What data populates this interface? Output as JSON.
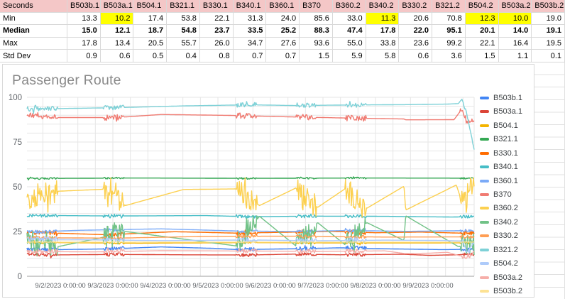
{
  "table": {
    "corner_label": "Seconds",
    "columns": [
      "B503b.1",
      "B503a.1",
      "B504.1",
      "B321.1",
      "B330.1",
      "B340.1",
      "B360.1",
      "B370",
      "B360.2",
      "B340.2",
      "B330.2",
      "B321.2",
      "B504.2",
      "B503a.2",
      "B503b.2"
    ],
    "rows": [
      {
        "label": "Min",
        "bold": false,
        "highlight_cols": [
          1,
          9,
          12,
          13
        ],
        "values": [
          "13.3",
          "10.2",
          "17.4",
          "53.8",
          "22.1",
          "31.3",
          "24.0",
          "85.6",
          "33.0",
          "11.3",
          "20.6",
          "70.8",
          "12.3",
          "10.0",
          "19.0"
        ]
      },
      {
        "label": "Median",
        "bold": true,
        "highlight_cols": [],
        "values": [
          "15.0",
          "12.1",
          "18.7",
          "54.8",
          "23.7",
          "33.5",
          "25.2",
          "88.3",
          "47.4",
          "17.8",
          "22.0",
          "95.1",
          "20.1",
          "14.0",
          "19.1"
        ]
      },
      {
        "label": "Max",
        "bold": false,
        "highlight_cols": [],
        "values": [
          "17.8",
          "13.4",
          "20.5",
          "55.7",
          "26.0",
          "34.7",
          "27.6",
          "93.6",
          "55.0",
          "33.8",
          "23.6",
          "99.2",
          "22.1",
          "16.4",
          "19.5"
        ]
      },
      {
        "label": "Std Dev",
        "bold": false,
        "highlight_cols": [],
        "values": [
          "0.9",
          "0.6",
          "0.5",
          "0.4",
          "0.8",
          "0.7",
          "0.7",
          "1.5",
          "5.9",
          "5.8",
          "0.6",
          "3.6",
          "1.5",
          "1.1",
          "0.1"
        ]
      }
    ],
    "colors": {
      "header_bg": "#f4c7c7",
      "highlight_bg": "#ffff00",
      "grid": "#d9d9d9"
    }
  },
  "chart_data": {
    "type": "line",
    "title": "Passenger Route",
    "xlabel": "",
    "ylabel": "",
    "x_labels": [
      "9/2/2023 0:00:00",
      "9/3/2023 0:00:00",
      "9/4/2023 0:00:00",
      "9/5/2023 0:00:00",
      "9/6/2023 0:00:00",
      "9/7/2023 0:00:00",
      "9/8/2023 0:00:00",
      "9/9/2023 0:00:00"
    ],
    "y_ticks": [
      0,
      25,
      50,
      75,
      100
    ],
    "ylim": [
      0,
      100
    ],
    "x_span_days": 8.51,
    "grid": "both",
    "minor_grid_y_step": 5,
    "minor_grid_x_hours": 8,
    "legend_position": "right",
    "burst_windows": [
      [
        0.0,
        0.068
      ],
      [
        0.17,
        0.218
      ],
      [
        0.467,
        0.515
      ],
      [
        0.601,
        0.647
      ],
      [
        0.712,
        0.758
      ],
      [
        0.968,
        1.0
      ]
    ],
    "series": [
      {
        "name": "B503b.1",
        "color": "#4285F4",
        "min": 13.3,
        "median": 15.0,
        "max": 17.8,
        "std": 0.9,
        "noise": 1.1,
        "keyframes": [
          [
            0,
            15.2
          ],
          [
            0.07,
            14.9
          ],
          [
            0.18,
            15.3
          ],
          [
            0.3,
            16.4
          ],
          [
            0.42,
            15.6
          ],
          [
            0.47,
            14.9
          ],
          [
            0.6,
            15.4
          ],
          [
            0.7,
            15.9
          ],
          [
            0.82,
            15.3
          ],
          [
            0.93,
            14.9
          ],
          [
            1,
            15.1
          ]
        ]
      },
      {
        "name": "B503a.1",
        "color": "#DB4437",
        "min": 10.2,
        "median": 12.1,
        "max": 13.4,
        "std": 0.6,
        "noise": 0.9,
        "keyframes": [
          [
            0,
            12.7
          ],
          [
            0.04,
            11.9
          ],
          [
            0.2,
            12.2
          ],
          [
            0.35,
            12.0
          ],
          [
            0.5,
            11.9
          ],
          [
            0.6,
            12.4
          ],
          [
            0.7,
            12.0
          ],
          [
            0.84,
            12.3
          ],
          [
            0.9,
            11.7
          ],
          [
            1,
            12.2
          ]
        ]
      },
      {
        "name": "B504.1",
        "color": "#F4B400",
        "min": 17.4,
        "median": 18.7,
        "max": 20.5,
        "std": 0.5,
        "noise": 0.6,
        "keyframes": [
          [
            0,
            18.9
          ],
          [
            0.25,
            18.5
          ],
          [
            0.5,
            18.8
          ],
          [
            0.75,
            18.6
          ],
          [
            1,
            18.7
          ]
        ]
      },
      {
        "name": "B321.1",
        "color": "#34A853",
        "min": 53.8,
        "median": 54.8,
        "max": 55.7,
        "std": 0.4,
        "noise": 0.5,
        "keyframes": [
          [
            0,
            54.6
          ],
          [
            0.25,
            54.9
          ],
          [
            0.5,
            54.7
          ],
          [
            0.75,
            54.9
          ],
          [
            1,
            54.8
          ]
        ]
      },
      {
        "name": "B330.1",
        "color": "#FF6D01",
        "min": 22.1,
        "median": 23.7,
        "max": 26.0,
        "std": 0.8,
        "noise": 1.2,
        "keyframes": [
          [
            0,
            24.6
          ],
          [
            0.18,
            23.2
          ],
          [
            0.33,
            24.9
          ],
          [
            0.47,
            24.1
          ],
          [
            0.6,
            24.7
          ],
          [
            0.68,
            25.1
          ],
          [
            0.78,
            24.3
          ],
          [
            0.88,
            24.7
          ],
          [
            1,
            23.9
          ]
        ]
      },
      {
        "name": "B340.1",
        "color": "#46BDC6",
        "min": 31.3,
        "median": 33.5,
        "max": 34.7,
        "std": 0.7,
        "noise": 0.9,
        "keyframes": [
          [
            0,
            34.0
          ],
          [
            0.2,
            33.7
          ],
          [
            0.4,
            33.9
          ],
          [
            0.5,
            33.3
          ],
          [
            0.65,
            33.6
          ],
          [
            0.8,
            33.5
          ],
          [
            0.95,
            33.1
          ],
          [
            1,
            33.3
          ]
        ]
      },
      {
        "name": "B360.1",
        "color": "#7BAAF7",
        "min": 24.0,
        "median": 25.2,
        "max": 27.6,
        "std": 0.7,
        "noise": 0.9,
        "keyframes": [
          [
            0,
            24.7
          ],
          [
            0.12,
            25.7
          ],
          [
            0.3,
            26.5
          ],
          [
            0.47,
            25.3
          ],
          [
            0.6,
            25.0
          ],
          [
            0.72,
            25.6
          ],
          [
            0.85,
            25.1
          ],
          [
            1,
            25.6
          ]
        ]
      },
      {
        "name": "B370",
        "color": "#F07B72",
        "min": 85.6,
        "median": 88.3,
        "max": 93.6,
        "std": 1.5,
        "noise": 1.6,
        "keyframes": [
          [
            0,
            90.6
          ],
          [
            0.035,
            88.7
          ],
          [
            0.2,
            88.7
          ],
          [
            0.3,
            90.4
          ],
          [
            0.45,
            89.9
          ],
          [
            0.6,
            89.0
          ],
          [
            0.72,
            88.4
          ],
          [
            0.843,
            87.9
          ],
          [
            0.847,
            87.4
          ],
          [
            0.955,
            87.5
          ],
          [
            0.972,
            93.2
          ],
          [
            0.985,
            85.6
          ],
          [
            1,
            87.6
          ]
        ]
      },
      {
        "name": "B360.2",
        "color": "#FCD04F",
        "min": 33.0,
        "median": 47.4,
        "max": 55.0,
        "std": 5.9,
        "noise": 6.5,
        "keyframes": [
          [
            0,
            44
          ],
          [
            0.068,
            47.5
          ],
          [
            0.17,
            48.6
          ],
          [
            0.22,
            39.5
          ],
          [
            0.35,
            48.5
          ],
          [
            0.467,
            48.8
          ],
          [
            0.52,
            39.5
          ],
          [
            0.601,
            49.3
          ],
          [
            0.65,
            38.5
          ],
          [
            0.712,
            49.0
          ],
          [
            0.76,
            38.0
          ],
          [
            0.843,
            50.3
          ],
          [
            0.847,
            37.0
          ],
          [
            0.96,
            51.0
          ],
          [
            0.975,
            40
          ],
          [
            1,
            54.5
          ]
        ]
      },
      {
        "name": "B340.2",
        "color": "#71C287",
        "min": 11.3,
        "median": 17.8,
        "max": 33.8,
        "std": 5.8,
        "noise": 6.0,
        "keyframes": [
          [
            0,
            20
          ],
          [
            0.068,
            16.5
          ],
          [
            0.165,
            21.5
          ],
          [
            0.22,
            25.0
          ],
          [
            0.467,
            17.0
          ],
          [
            0.52,
            33.5
          ],
          [
            0.601,
            17.0
          ],
          [
            0.65,
            30.0
          ],
          [
            0.712,
            17.5
          ],
          [
            0.76,
            30.0
          ],
          [
            0.843,
            20.0
          ],
          [
            0.847,
            33.8
          ],
          [
            0.965,
            16.5
          ],
          [
            1,
            20.0
          ]
        ]
      },
      {
        "name": "B330.2",
        "color": "#FF9E54",
        "min": 20.6,
        "median": 22.0,
        "max": 23.6,
        "std": 0.6,
        "noise": 0.8,
        "keyframes": [
          [
            0,
            21.6
          ],
          [
            0.2,
            21.3
          ],
          [
            0.4,
            22.3
          ],
          [
            0.6,
            22.4
          ],
          [
            0.8,
            21.9
          ],
          [
            1,
            22.0
          ]
        ]
      },
      {
        "name": "B321.2",
        "color": "#7ED1D7",
        "min": 70.8,
        "median": 95.1,
        "max": 99.2,
        "std": 3.6,
        "noise": 1.3,
        "keyframes": [
          [
            0,
            93.4
          ],
          [
            0.07,
            93.7
          ],
          [
            0.2,
            94.2
          ],
          [
            0.35,
            95.2
          ],
          [
            0.5,
            95.8
          ],
          [
            0.6,
            95.4
          ],
          [
            0.72,
            95.7
          ],
          [
            0.85,
            95.9
          ],
          [
            0.94,
            96.2
          ],
          [
            0.965,
            96.5
          ],
          [
            0.972,
            99.0
          ],
          [
            0.982,
            92.0
          ],
          [
            0.992,
            80.0
          ],
          [
            1,
            71.0
          ]
        ]
      },
      {
        "name": "B504.2",
        "color": "#AECBFA",
        "min": 12.3,
        "median": 20.1,
        "max": 22.1,
        "std": 1.5,
        "noise": 1.3,
        "keyframes": [
          [
            0,
            20.9
          ],
          [
            0.15,
            20.4
          ],
          [
            0.3,
            19.9
          ],
          [
            0.5,
            20.3
          ],
          [
            0.65,
            19.8
          ],
          [
            0.8,
            20.2
          ],
          [
            0.93,
            20.0
          ],
          [
            0.975,
            19.6
          ],
          [
            0.985,
            12.5
          ],
          [
            1,
            19.2
          ]
        ]
      },
      {
        "name": "B503a.2",
        "color": "#F6AEA9",
        "min": 10.0,
        "median": 14.0,
        "max": 16.4,
        "std": 1.1,
        "noise": 1.2,
        "keyframes": [
          [
            0,
            13.9
          ],
          [
            0.15,
            13.6
          ],
          [
            0.3,
            14.3
          ],
          [
            0.5,
            14.1
          ],
          [
            0.65,
            13.9
          ],
          [
            0.8,
            14.2
          ],
          [
            0.845,
            12.7
          ],
          [
            0.9,
            12.9
          ],
          [
            0.94,
            13.4
          ],
          [
            0.985,
            10.3
          ],
          [
            1,
            13.6
          ]
        ]
      },
      {
        "name": "B503b.2",
        "color": "#FDE293",
        "min": 19.0,
        "median": 19.1,
        "max": 19.5,
        "std": 0.1,
        "noise": 0.15,
        "keyframes": [
          [
            0,
            19.1
          ],
          [
            1,
            19.1
          ]
        ]
      }
    ]
  },
  "chart_colors": {
    "grid": "#e6e6e6",
    "axis_line": "#b0b0b0",
    "tick_text": "#5f6368",
    "title_text": "#8a8a8a",
    "legend_text": "#3c4043"
  }
}
